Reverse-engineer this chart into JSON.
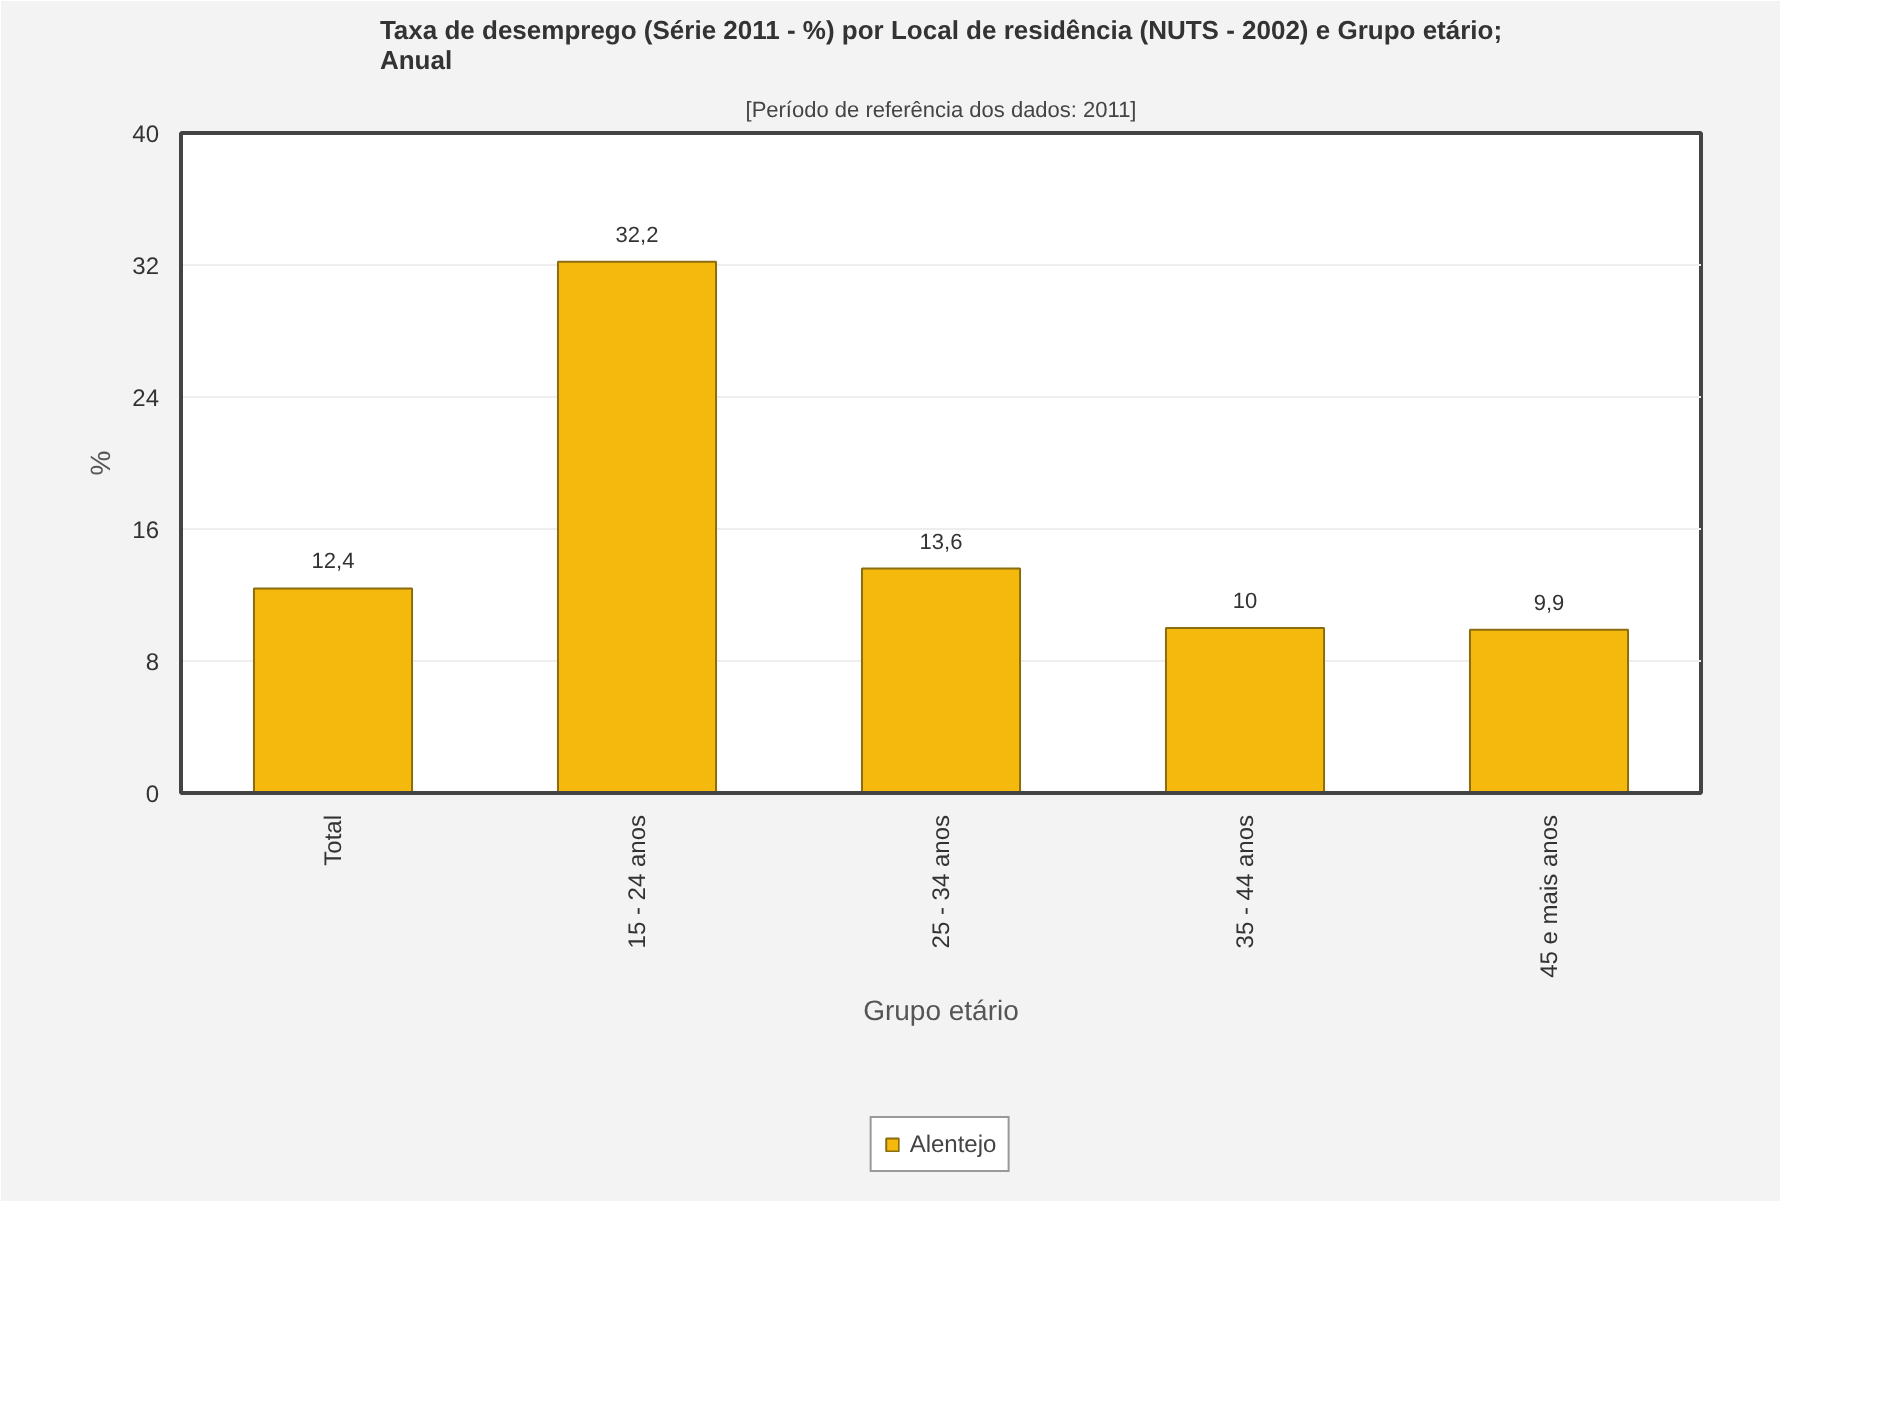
{
  "chart_data": {
    "type": "bar",
    "title": "Taxa de desemprego (Série 2011 - %) por Local de residência (NUTS - 2002) e Grupo etário; Anual",
    "subtitle": "[Período de referência dos dados: 2011]",
    "xlabel": "Grupo etário",
    "ylabel": "%",
    "categories": [
      "Total",
      "15 - 24 anos",
      "25 - 34 anos",
      "35 - 44 anos",
      "45 e mais anos"
    ],
    "series": [
      {
        "name": "Alentejo",
        "color": "#f5b90d",
        "values": [
          12.4,
          32.2,
          13.6,
          10,
          9.9
        ]
      }
    ],
    "value_labels": [
      "12,4",
      "32,2",
      "13,6",
      "10",
      "9,9"
    ],
    "ylim": [
      0,
      40
    ],
    "yticks": [
      0,
      8,
      16,
      24,
      32,
      40
    ],
    "grid": "y",
    "legend": "bottom"
  }
}
